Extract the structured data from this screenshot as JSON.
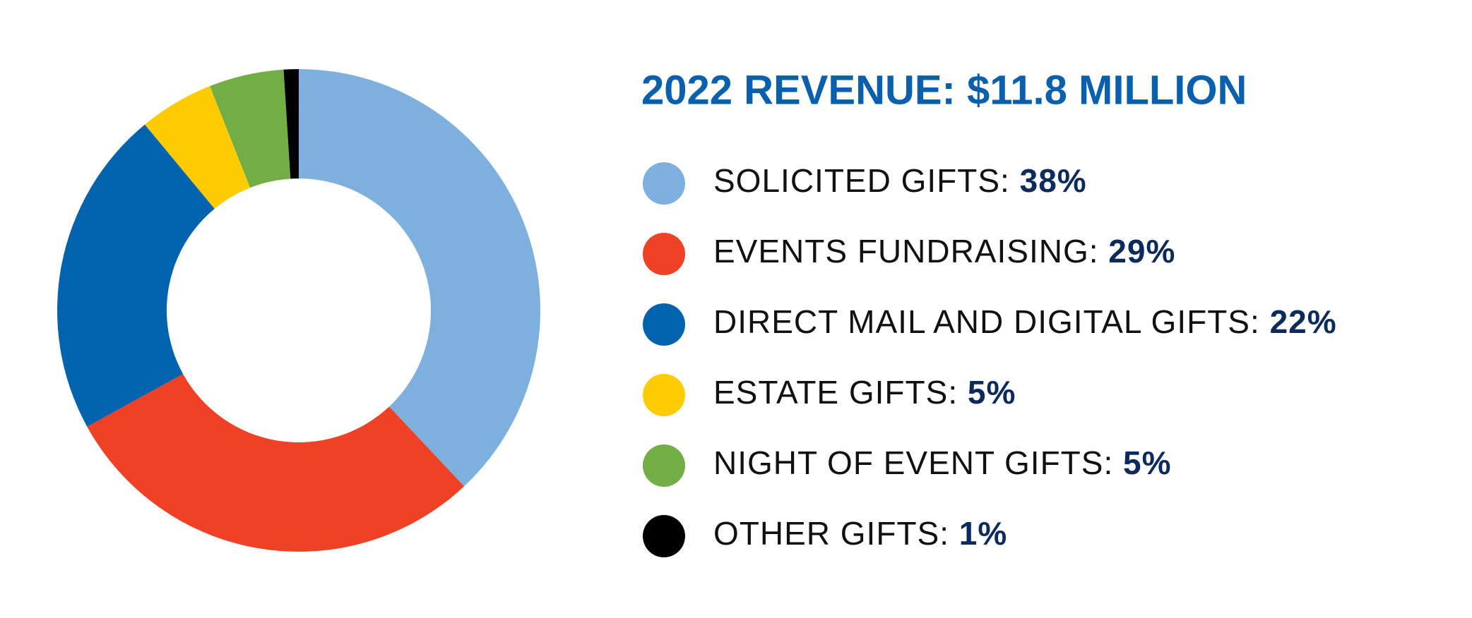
{
  "chart_data": {
    "type": "donut",
    "title": "2022 REVENUE: $11.8 MILLION",
    "categories": [
      "SOLICITED GIFTS:",
      "EVENTS FUNDRAISING:",
      "DIRECT MAIL AND DIGITAL GIFTS:",
      "ESTATE GIFTS:",
      "NIGHT OF EVENT GIFTS:",
      "OTHER GIFTS:"
    ],
    "values": [
      38,
      29,
      22,
      5,
      5,
      1
    ],
    "value_labels": [
      "38%",
      "29%",
      "22%",
      "5%",
      "5%",
      "1%"
    ],
    "colors": [
      "#7eb0de",
      "#ee4125",
      "#0063ae",
      "#fecc00",
      "#72ad46",
      "#000000"
    ],
    "legend": "right"
  }
}
